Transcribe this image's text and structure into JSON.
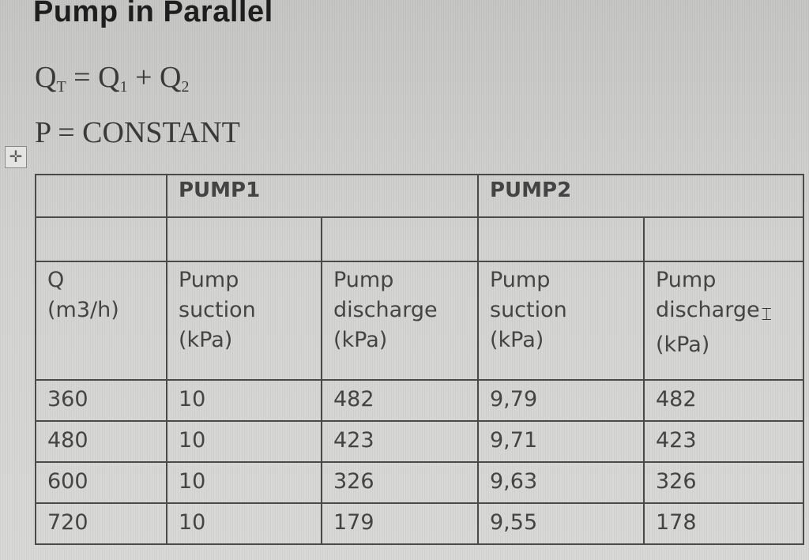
{
  "title": "Pump in Parallel",
  "formulas": {
    "flow": {
      "lhs": "Q",
      "lhs_sub": "T",
      "eq": " = ",
      "q1": "Q",
      "q1_sub": "1",
      "plus": " + ",
      "q2": "Q",
      "q2_sub": "2"
    },
    "pressure": "P = CONSTANT"
  },
  "table": {
    "headers": {
      "pump1": "PUMP1",
      "pump2": "PUMP2"
    },
    "column_labels": {
      "q": [
        "Q",
        "(m3/h)"
      ],
      "p1_suction": [
        "Pump",
        "suction",
        "(kPa)"
      ],
      "p1_discharge": [
        "Pump",
        "discharge",
        "(kPa)"
      ],
      "p2_suction": [
        "Pump",
        "suction",
        "(kPa)"
      ],
      "p2_discharge": [
        "Pump",
        "discharge",
        "(kPa)"
      ]
    },
    "rows": [
      [
        "360",
        "10",
        "482",
        "9,79",
        "482"
      ],
      [
        "480",
        "10",
        "423",
        "9,71",
        "423"
      ],
      [
        "600",
        "10",
        "326",
        "9,63",
        "326"
      ],
      [
        "720",
        "10",
        "179",
        "9,55",
        "178"
      ]
    ]
  },
  "icons": {
    "move_handle": "move-cross-icon",
    "text_cursor": "ibeam-cursor-icon"
  }
}
